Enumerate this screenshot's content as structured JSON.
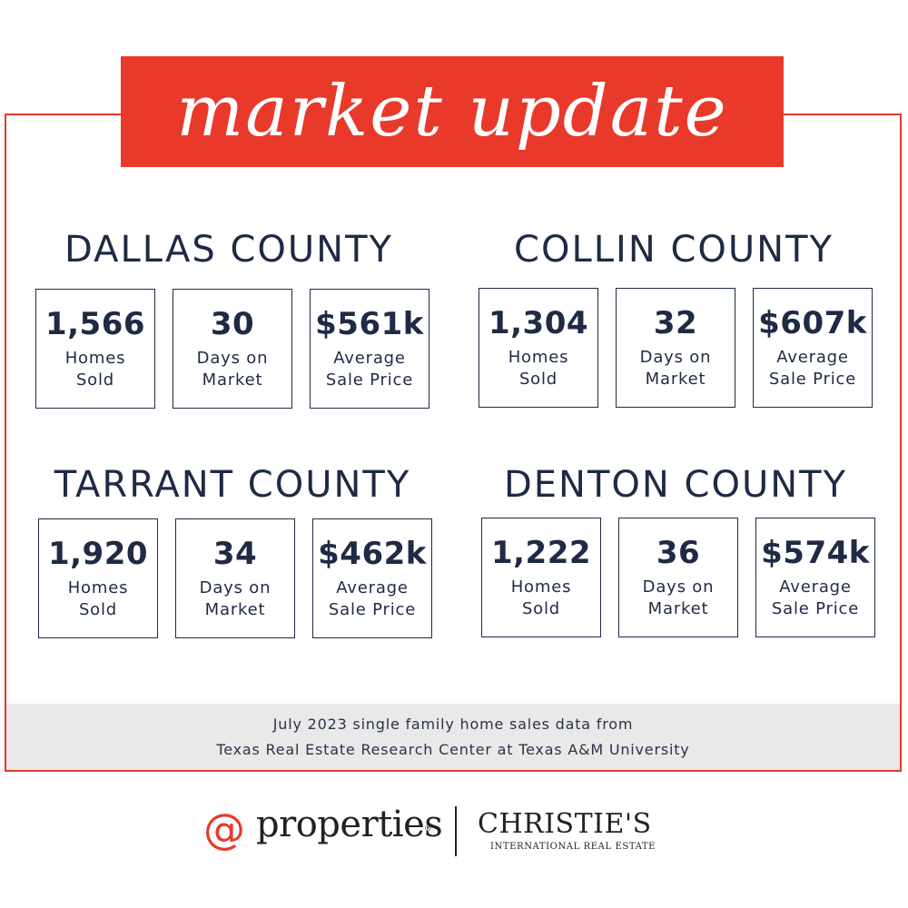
{
  "banner": {
    "title": "market update"
  },
  "counties": [
    {
      "name": "DALLAS COUNTY",
      "stats": [
        {
          "value": "1,566",
          "label_line1": "Homes",
          "label_line2": "Sold"
        },
        {
          "value": "30",
          "label_line1": "Days on",
          "label_line2": "Market"
        },
        {
          "value": "$561k",
          "label_line1": "Average",
          "label_line2": "Sale Price"
        }
      ]
    },
    {
      "name": "COLLIN COUNTY",
      "stats": [
        {
          "value": "1,304",
          "label_line1": "Homes",
          "label_line2": "Sold"
        },
        {
          "value": "32",
          "label_line1": "Days on",
          "label_line2": "Market"
        },
        {
          "value": "$607k",
          "label_line1": "Average",
          "label_line2": "Sale Price"
        }
      ]
    },
    {
      "name": "TARRANT COUNTY",
      "stats": [
        {
          "value": "1,920",
          "label_line1": "Homes",
          "label_line2": "Sold"
        },
        {
          "value": "34",
          "label_line1": "Days on",
          "label_line2": "Market"
        },
        {
          "value": "$462k",
          "label_line1": "Average",
          "label_line2": "Sale Price"
        }
      ]
    },
    {
      "name": "DENTON COUNTY",
      "stats": [
        {
          "value": "1,222",
          "label_line1": "Homes",
          "label_line2": "Sold"
        },
        {
          "value": "36",
          "label_line1": "Days on",
          "label_line2": "Market"
        },
        {
          "value": "$574k",
          "label_line1": "Average",
          "label_line2": "Sale Price"
        }
      ]
    }
  ],
  "footer": {
    "line1": "July 2023 single family home sales data from",
    "line2": "Texas Real Estate Research Center at Texas A&M University"
  },
  "brand": {
    "at_symbol": "@",
    "properties": "properties",
    "registered": "®",
    "christies": "CHRISTIE'S",
    "christies_sub": "INTERNATIONAL REAL ESTATE"
  },
  "colors": {
    "accent": "#e8392a",
    "text": "#1f2a44",
    "footer_bg": "#e9e9e9"
  }
}
